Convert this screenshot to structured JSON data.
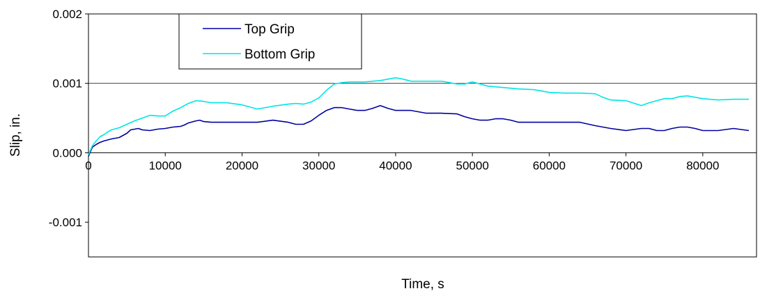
{
  "chart_data": {
    "type": "line",
    "title": "",
    "xlabel": "Time, s",
    "ylabel": "Slip, in.",
    "xlim": [
      0,
      87000
    ],
    "ylim": [
      -0.0015,
      0.002
    ],
    "xticks": [
      0,
      10000,
      20000,
      30000,
      40000,
      50000,
      60000,
      70000,
      80000
    ],
    "xtick_labels": [
      "0",
      "10000",
      "20000",
      "30000",
      "40000",
      "50000",
      "60000",
      "70000",
      "80000"
    ],
    "yticks": [
      -0.001,
      0.0,
      0.001,
      0.002
    ],
    "ytick_labels": [
      "-0.001",
      "0.000",
      "0.001",
      "0.002"
    ],
    "gridlines_y": [
      0.001,
      0.002
    ],
    "legend": {
      "position": "top-left",
      "entries": [
        "Top Grip",
        "Bottom Grip"
      ]
    },
    "series": [
      {
        "name": "Top Grip",
        "color": "#0000a0",
        "x": [
          0,
          500,
          1000,
          1500,
          2000,
          3000,
          4000,
          5000,
          5500,
          6000,
          6500,
          7000,
          8000,
          9000,
          10000,
          11000,
          12000,
          12500,
          13000,
          14000,
          14500,
          15000,
          16000,
          18000,
          20000,
          22000,
          24000,
          26000,
          27000,
          28000,
          29000,
          30000,
          31000,
          32000,
          33000,
          34000,
          35000,
          36000,
          37000,
          38000,
          39000,
          40000,
          42000,
          44000,
          46000,
          48000,
          49000,
          50000,
          51000,
          52000,
          53000,
          54000,
          55000,
          56000,
          58000,
          60000,
          62000,
          64000,
          66000,
          68000,
          70000,
          72000,
          73000,
          74000,
          75000,
          76000,
          77000,
          78000,
          79000,
          80000,
          81000,
          82000,
          84000,
          86000
        ],
        "y": [
          -5e-05,
          8e-05,
          0.00012,
          0.00015,
          0.00017,
          0.0002,
          0.00022,
          0.00028,
          0.00033,
          0.00034,
          0.00035,
          0.00033,
          0.00032,
          0.00034,
          0.00035,
          0.00037,
          0.00038,
          0.0004,
          0.00043,
          0.00046,
          0.00047,
          0.00045,
          0.00044,
          0.00044,
          0.00044,
          0.00044,
          0.00047,
          0.00044,
          0.00041,
          0.00041,
          0.00046,
          0.00054,
          0.00061,
          0.00065,
          0.00065,
          0.00063,
          0.00061,
          0.00061,
          0.00064,
          0.00068,
          0.00064,
          0.00061,
          0.00061,
          0.00057,
          0.00057,
          0.00056,
          0.00052,
          0.00049,
          0.00047,
          0.00047,
          0.00049,
          0.00049,
          0.00047,
          0.00044,
          0.00044,
          0.00044,
          0.00044,
          0.00044,
          0.00039,
          0.00035,
          0.00032,
          0.00035,
          0.00035,
          0.00032,
          0.00032,
          0.00035,
          0.00037,
          0.00037,
          0.00035,
          0.00032,
          0.00032,
          0.00032,
          0.00035,
          0.00032
        ]
      },
      {
        "name": "Bottom Grip",
        "color": "#00e5e5",
        "x": [
          0,
          500,
          1000,
          1500,
          2000,
          2500,
          3000,
          4000,
          5000,
          6000,
          7000,
          8000,
          9000,
          10000,
          11000,
          12000,
          13000,
          14000,
          15000,
          16000,
          18000,
          20000,
          21000,
          22000,
          23000,
          24000,
          26000,
          27000,
          28000,
          29000,
          30000,
          31000,
          32000,
          33000,
          34000,
          36000,
          38000,
          39000,
          40000,
          41000,
          42000,
          44000,
          46000,
          48000,
          49000,
          50000,
          51000,
          52000,
          54000,
          56000,
          58000,
          60000,
          62000,
          64000,
          66000,
          67000,
          68000,
          70000,
          72000,
          73000,
          74000,
          75000,
          76000,
          77000,
          78000,
          79000,
          80000,
          82000,
          84000,
          86000
        ],
        "y": [
          -3e-05,
          0.0001,
          0.00017,
          0.00023,
          0.00026,
          0.0003,
          0.00033,
          0.00036,
          0.00041,
          0.00046,
          0.0005,
          0.00054,
          0.00053,
          0.00053,
          0.0006,
          0.00065,
          0.00071,
          0.00075,
          0.00074,
          0.00072,
          0.00072,
          0.00069,
          0.00066,
          0.00063,
          0.00065,
          0.00067,
          0.0007,
          0.00071,
          0.0007,
          0.00073,
          0.00079,
          0.0009,
          0.00099,
          0.00101,
          0.00102,
          0.00102,
          0.00104,
          0.00106,
          0.00108,
          0.00106,
          0.00103,
          0.00103,
          0.00103,
          0.00099,
          0.00099,
          0.00102,
          0.00099,
          0.00096,
          0.00094,
          0.00092,
          0.00091,
          0.00087,
          0.00086,
          0.00086,
          0.00085,
          0.0008,
          0.00076,
          0.00075,
          0.00068,
          0.00072,
          0.00075,
          0.00078,
          0.00078,
          0.00081,
          0.00082,
          0.0008,
          0.00078,
          0.00076,
          0.00077,
          0.00077
        ]
      }
    ]
  }
}
